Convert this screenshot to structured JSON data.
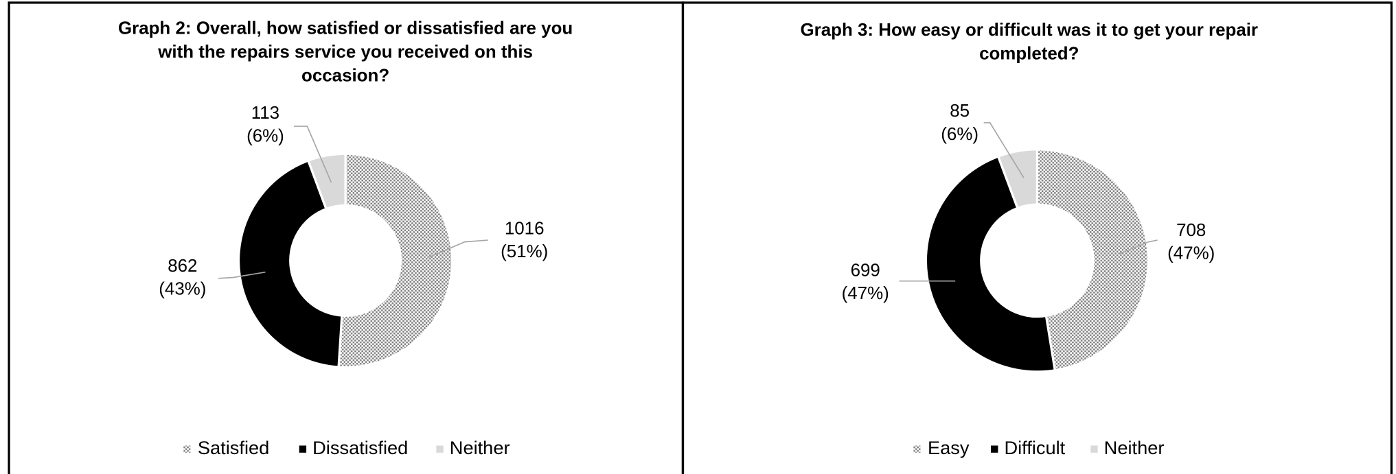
{
  "chart_data": [
    {
      "type": "donut",
      "title": [
        "Graph 2: Overall, how satisfied or dissatisfied are you",
        "with the repairs service you received on this",
        "occasion?"
      ],
      "categories": [
        "Satisfied",
        "Dissatisfied",
        "Neither"
      ],
      "values": [
        1016,
        862,
        113
      ],
      "percent_labels": [
        "(51%)",
        "(43%)",
        "(6%)"
      ],
      "colors": [
        "#808080",
        "#000000",
        "#d9d9d9"
      ]
    },
    {
      "type": "donut",
      "title": [
        "Graph 3: How easy or difficult was it to get your repair",
        "completed?"
      ],
      "categories": [
        "Easy",
        "Difficult",
        "Neither"
      ],
      "values": [
        708,
        699,
        85
      ],
      "percent_labels": [
        "(47%)",
        "(47%)",
        "(6%)"
      ],
      "colors": [
        "#808080",
        "#000000",
        "#d9d9d9"
      ]
    }
  ]
}
